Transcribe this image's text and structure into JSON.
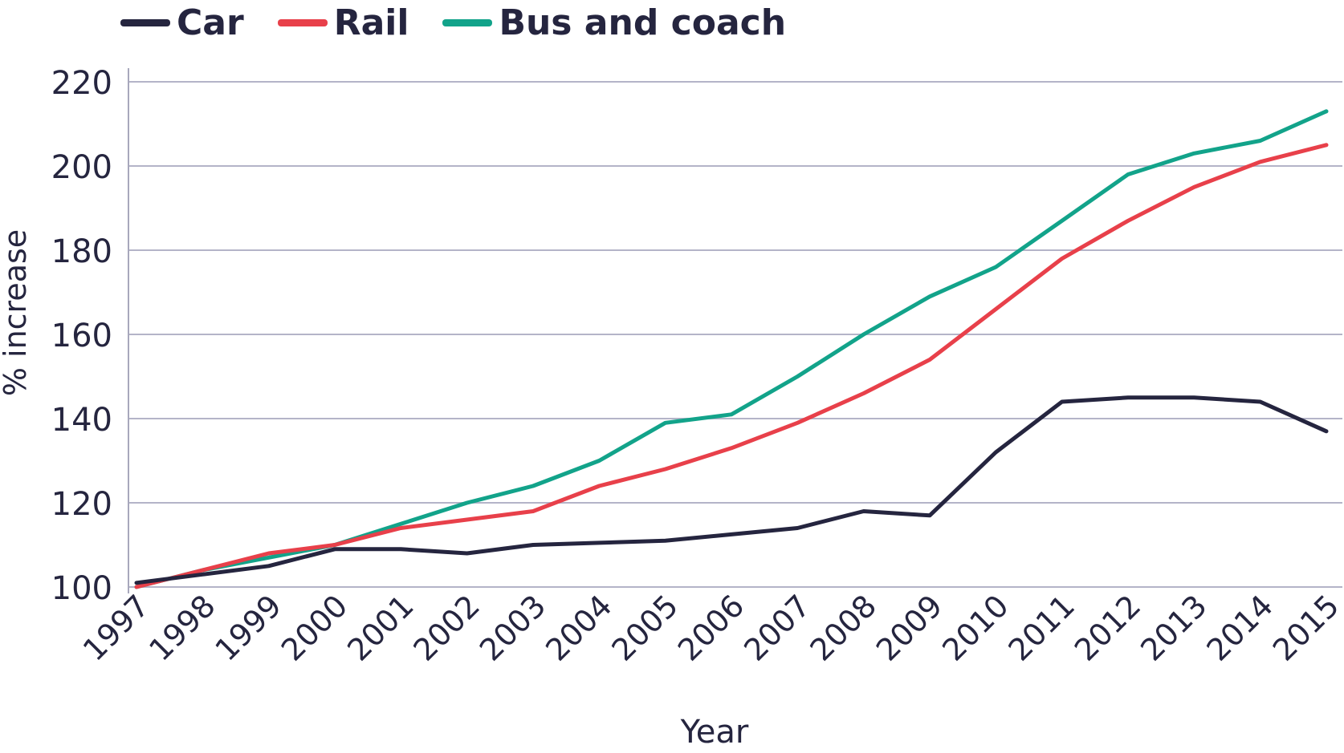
{
  "chart_data": {
    "type": "line",
    "title": "",
    "xlabel": "Year",
    "ylabel": "% increase",
    "ylim": [
      100,
      220
    ],
    "yticks": [
      "100",
      "120",
      "140",
      "160",
      "180",
      "200",
      "220"
    ],
    "grid": "horizontal",
    "legend": "top-left",
    "categories": [
      "1997",
      "1998",
      "1999",
      "2000",
      "2001",
      "2002",
      "2003",
      "2004",
      "2005",
      "2006",
      "2007",
      "2008",
      "2009",
      "2010",
      "2011",
      "2012",
      "2013",
      "2014",
      "2015"
    ],
    "series": [
      {
        "name": "Car",
        "color": "#25253f",
        "values": [
          101,
          103,
          105,
          109,
          109,
          108,
          110,
          110.5,
          111,
          112.5,
          114,
          118,
          117,
          132,
          144,
          145,
          145,
          144,
          137
        ]
      },
      {
        "name": "Rail",
        "color": "#e8404a",
        "values": [
          100,
          104,
          108,
          110,
          114,
          116,
          118,
          124,
          128,
          133,
          139,
          146,
          154,
          166,
          178,
          187,
          195,
          201,
          205
        ]
      },
      {
        "name": "Bus and coach",
        "color": "#12a38a",
        "values": [
          100,
          104,
          107,
          110,
          115,
          120,
          124,
          130,
          139,
          141,
          150,
          160,
          169,
          176,
          187,
          198,
          203,
          206,
          213
        ]
      }
    ]
  }
}
